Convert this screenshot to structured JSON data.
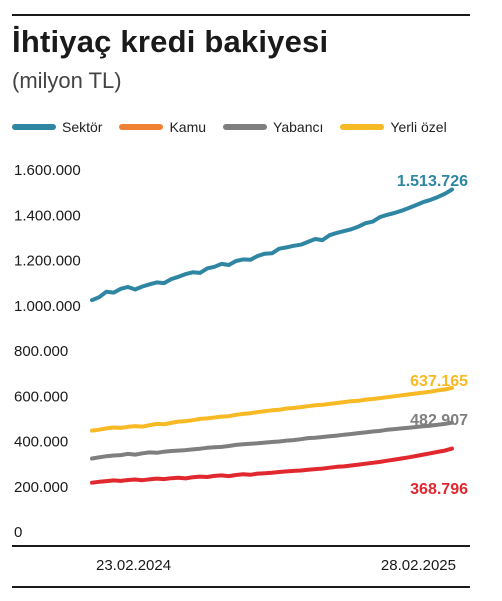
{
  "header": {
    "title": "İhtiyaç kredi bakiyesi",
    "subtitle": "(milyon TL)"
  },
  "chart_data": {
    "type": "line",
    "title": "İhtiyaç kredi bakiyesi",
    "subtitle": "(milyon TL)",
    "xlabel": "",
    "ylabel": "",
    "x_tick_labels": [
      "23.02.2024",
      "28.02.2025"
    ],
    "x_range": [
      "23.02.2024",
      "28.02.2025"
    ],
    "y_ticks": [
      0,
      200000,
      400000,
      600000,
      800000,
      1000000,
      1200000,
      1400000,
      1600000
    ],
    "y_tick_labels": [
      "0",
      "200.000",
      "400.000",
      "600.000",
      "800.000",
      "1.000.000",
      "1.200.000",
      "1.400.000",
      "1.600.000"
    ],
    "ylim": [
      0,
      1600000
    ],
    "grid": false,
    "legend_position": "top",
    "series": [
      {
        "name": "Sektör",
        "color": "#2e86a3",
        "end_label": "1.513.726",
        "start_value": 1025000,
        "end_value": 1513726,
        "values": [
          1025000,
          1038000,
          1062000,
          1058000,
          1075000,
          1083000,
          1072000,
          1085000,
          1095000,
          1103000,
          1100000,
          1118000,
          1128000,
          1140000,
          1148000,
          1145000,
          1165000,
          1172000,
          1185000,
          1180000,
          1198000,
          1205000,
          1203000,
          1220000,
          1230000,
          1232000,
          1252000,
          1258000,
          1265000,
          1270000,
          1282000,
          1295000,
          1290000,
          1312000,
          1322000,
          1330000,
          1338000,
          1350000,
          1365000,
          1372000,
          1392000,
          1402000,
          1410000,
          1420000,
          1432000,
          1445000,
          1458000,
          1468000,
          1480000,
          1495000,
          1513726
        ]
      },
      {
        "name": "Kamu",
        "color": "#f08033",
        "values": []
      },
      {
        "name": "Yabancı",
        "color": "#7f7f7f",
        "end_label": "482.907",
        "start_value": 325000,
        "end_value": 482907,
        "values": [
          325000,
          330000,
          335000,
          338000,
          340000,
          345000,
          342000,
          348000,
          352000,
          350000,
          355000,
          358000,
          360000,
          362000,
          365000,
          368000,
          372000,
          375000,
          376000,
          380000,
          385000,
          388000,
          390000,
          392000,
          395000,
          398000,
          400000,
          404000,
          406000,
          410000,
          415000,
          417000,
          420000,
          423000,
          426000,
          430000,
          433000,
          437000,
          440000,
          444000,
          447000,
          452000,
          455000,
          458000,
          461000,
          464000,
          467000,
          470000,
          474000,
          478000,
          482907
        ]
      },
      {
        "name": "Yerli özel",
        "color": "#f7b924",
        "end_label": "637.165",
        "start_value": 448000,
        "end_value": 637165,
        "values": [
          448000,
          452000,
          458000,
          462000,
          460000,
          465000,
          468000,
          466000,
          472000,
          478000,
          476000,
          482000,
          488000,
          490000,
          494000,
          500000,
          502000,
          506000,
          510000,
          512000,
          518000,
          522000,
          525000,
          530000,
          534000,
          538000,
          540000,
          546000,
          548000,
          552000,
          556000,
          560000,
          562000,
          566000,
          570000,
          574000,
          578000,
          580000,
          585000,
          588000,
          592000,
          596000,
          600000,
          604000,
          608000,
          612000,
          616000,
          620000,
          626000,
          630000,
          637165
        ]
      },
      {
        "name": "",
        "color": "#e0282e",
        "end_label": "368.796",
        "start_value": 218000,
        "end_value": 368796,
        "values": [
          218000,
          222000,
          225000,
          228000,
          226000,
          230000,
          232000,
          229000,
          233000,
          236000,
          234000,
          238000,
          240000,
          237000,
          242000,
          245000,
          243000,
          248000,
          250000,
          247000,
          252000,
          255000,
          253000,
          258000,
          260000,
          262000,
          265000,
          268000,
          270000,
          272000,
          275000,
          278000,
          280000,
          284000,
          288000,
          290000,
          294000,
          298000,
          302000,
          306000,
          310000,
          315000,
          320000,
          325000,
          330000,
          336000,
          342000,
          348000,
          354000,
          360000,
          368796
        ]
      }
    ]
  }
}
